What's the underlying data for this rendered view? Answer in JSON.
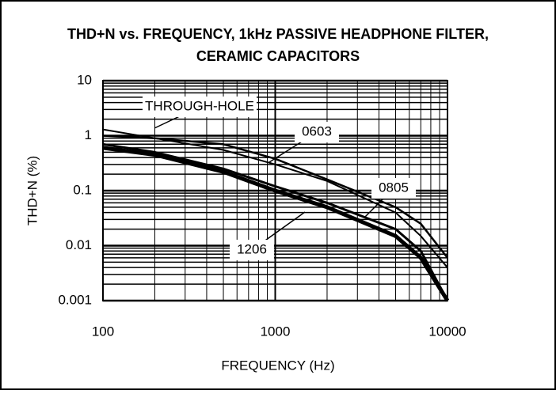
{
  "chart_data": {
    "type": "line",
    "title": [
      "THD+N vs. FREQUENCY, 1kHz PASSIVE HEADPHONE FILTER,",
      "CERAMIC CAPACITORS"
    ],
    "x_label": "FREQUENCY (Hz)",
    "y_label": "THD+N (%)",
    "x": [
      100,
      200,
      500,
      1000,
      2000,
      5000,
      7000,
      10000
    ],
    "series": [
      {
        "name": "THROUGH-HOLE",
        "color": "#000000",
        "stroke_width": 2,
        "values": [
          1.3,
          0.9,
          0.55,
          0.3,
          0.15,
          0.04,
          0.015,
          0.004
        ]
      },
      {
        "name": "0603",
        "color": "#000000",
        "stroke_width": 2.5,
        "values": [
          1.0,
          0.9,
          0.7,
          0.38,
          0.16,
          0.05,
          0.025,
          0.006
        ]
      },
      {
        "name": "0805",
        "color": "#000000",
        "stroke_width": 3,
        "values": [
          0.7,
          0.5,
          0.25,
          0.12,
          0.06,
          0.02,
          0.008,
          0.001
        ]
      },
      {
        "name": "1206",
        "color": "#000000",
        "stroke_width": 5,
        "values": [
          0.6,
          0.45,
          0.22,
          0.1,
          0.05,
          0.015,
          0.006,
          0.001
        ]
      }
    ],
    "xlim": [
      100,
      10000
    ],
    "ylim": [
      0.001,
      10
    ],
    "xticks": [
      100,
      1000,
      10000
    ],
    "yticks": [
      0.001,
      0.01,
      0.1,
      1,
      10
    ],
    "xscale": "log",
    "yscale": "log",
    "grid": true,
    "minor_grid": true
  }
}
